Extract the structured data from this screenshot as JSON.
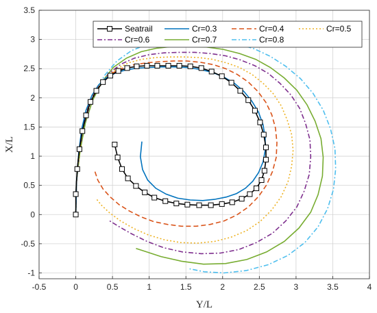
{
  "chart_data": {
    "type": "line",
    "xlabel": "Y/L",
    "ylabel": "X/L",
    "xlim": [
      -0.5,
      4
    ],
    "ylim": [
      -1.1,
      3.5
    ],
    "xticks": [
      -0.5,
      0,
      0.5,
      1,
      1.5,
      2,
      2.5,
      3,
      3.5,
      4
    ],
    "yticks": [
      -1,
      -0.5,
      0,
      0.5,
      1,
      1.5,
      2,
      2.5,
      3,
      3.5
    ],
    "xtick_labels": [
      "-0.5",
      "0",
      "0.5",
      "1",
      "1.5",
      "2",
      "2.5",
      "3",
      "3.5",
      "4"
    ],
    "ytick_labels": [
      "-1",
      "-0.5",
      "0",
      "0.5",
      "1",
      "1.5",
      "2",
      "2.5",
      "3",
      "3.5"
    ],
    "grid": true,
    "legend_position": "top",
    "series": [
      {
        "name": "Seatrail",
        "color": "#000000",
        "style": "solid",
        "marker": "square",
        "x": [
          0.0,
          0.0,
          0.02,
          0.05,
          0.09,
          0.14,
          0.2,
          0.28,
          0.37,
          0.47,
          0.58,
          0.7,
          0.83,
          0.97,
          1.11,
          1.26,
          1.41,
          1.56,
          1.71,
          1.85,
          1.99,
          2.12,
          2.24,
          2.35,
          2.44,
          2.51,
          2.56,
          2.59,
          2.59,
          2.57,
          2.53,
          2.46,
          2.37,
          2.26,
          2.13,
          1.99,
          1.84,
          1.68,
          1.52,
          1.37,
          1.22,
          1.07,
          0.94,
          0.82,
          0.71,
          0.63,
          0.57,
          0.53
        ],
        "y": [
          0.0,
          0.35,
          0.78,
          1.12,
          1.43,
          1.7,
          1.93,
          2.12,
          2.27,
          2.38,
          2.46,
          2.51,
          2.54,
          2.55,
          2.55,
          2.55,
          2.55,
          2.54,
          2.51,
          2.45,
          2.37,
          2.26,
          2.12,
          1.96,
          1.78,
          1.58,
          1.37,
          1.15,
          0.94,
          0.75,
          0.59,
          0.45,
          0.35,
          0.27,
          0.21,
          0.18,
          0.16,
          0.16,
          0.17,
          0.19,
          0.23,
          0.29,
          0.38,
          0.49,
          0.62,
          0.78,
          0.98,
          1.2
        ]
      },
      {
        "name": "Cr=0.3",
        "color": "#0072BD",
        "style": "solid",
        "x": [
          0.0,
          0.01,
          0.04,
          0.08,
          0.14,
          0.22,
          0.31,
          0.42,
          0.55,
          0.69,
          0.84,
          1.0,
          1.17,
          1.34,
          1.51,
          1.68,
          1.85,
          2.01,
          2.16,
          2.29,
          2.4,
          2.49,
          2.55,
          2.58,
          2.58,
          2.55,
          2.49,
          2.41,
          2.31,
          2.19,
          2.05,
          1.89,
          1.73,
          1.56,
          1.39,
          1.23,
          1.09,
          0.98,
          0.91,
          0.88,
          0.9
        ],
        "y": [
          0.0,
          0.55,
          1.05,
          1.46,
          1.79,
          2.04,
          2.22,
          2.35,
          2.43,
          2.48,
          2.51,
          2.52,
          2.53,
          2.53,
          2.52,
          2.49,
          2.44,
          2.36,
          2.25,
          2.11,
          1.94,
          1.75,
          1.54,
          1.32,
          1.1,
          0.9,
          0.72,
          0.57,
          0.45,
          0.36,
          0.3,
          0.26,
          0.24,
          0.25,
          0.28,
          0.35,
          0.45,
          0.59,
          0.77,
          0.99,
          1.25
        ]
      },
      {
        "name": "Cr=0.4",
        "color": "#D95319",
        "style": "dashed",
        "x": [
          0.0,
          0.01,
          0.04,
          0.09,
          0.16,
          0.25,
          0.36,
          0.49,
          0.64,
          0.8,
          0.97,
          1.15,
          1.33,
          1.51,
          1.69,
          1.87,
          2.04,
          2.2,
          2.35,
          2.48,
          2.59,
          2.67,
          2.72,
          2.74,
          2.73,
          2.68,
          2.6,
          2.49,
          2.35,
          2.19,
          2.02,
          1.83,
          1.64,
          1.44,
          1.25,
          1.06,
          0.89,
          0.73,
          0.59,
          0.47,
          0.37,
          0.3,
          0.26
        ],
        "y": [
          0.0,
          0.55,
          1.05,
          1.47,
          1.81,
          2.08,
          2.28,
          2.42,
          2.51,
          2.57,
          2.6,
          2.62,
          2.63,
          2.63,
          2.61,
          2.57,
          2.5,
          2.4,
          2.27,
          2.11,
          1.92,
          1.71,
          1.48,
          1.23,
          0.98,
          0.74,
          0.51,
          0.31,
          0.13,
          -0.01,
          -0.11,
          -0.17,
          -0.2,
          -0.2,
          -0.17,
          -0.12,
          -0.04,
          0.06,
          0.17,
          0.3,
          0.44,
          0.59,
          0.74
        ]
      },
      {
        "name": "Cr=0.5",
        "color": "#EDB120",
        "style": "dotted",
        "x": [
          0.0,
          0.01,
          0.05,
          0.1,
          0.18,
          0.28,
          0.41,
          0.56,
          0.72,
          0.9,
          1.09,
          1.28,
          1.48,
          1.67,
          1.86,
          2.05,
          2.23,
          2.4,
          2.55,
          2.69,
          2.8,
          2.88,
          2.94,
          2.96,
          2.94,
          2.89,
          2.8,
          2.67,
          2.51,
          2.32,
          2.11,
          1.89,
          1.66,
          1.43,
          1.2,
          0.99,
          0.79,
          0.61,
          0.46,
          0.35,
          0.28
        ],
        "y": [
          0.0,
          0.55,
          1.06,
          1.5,
          1.86,
          2.14,
          2.35,
          2.5,
          2.6,
          2.66,
          2.69,
          2.7,
          2.7,
          2.69,
          2.66,
          2.6,
          2.52,
          2.4,
          2.25,
          2.07,
          1.86,
          1.62,
          1.37,
          1.1,
          0.83,
          0.56,
          0.31,
          0.08,
          -0.12,
          -0.28,
          -0.39,
          -0.46,
          -0.49,
          -0.48,
          -0.43,
          -0.35,
          -0.24,
          -0.11,
          0.03,
          0.16,
          0.27
        ]
      },
      {
        "name": "Cr=0.6",
        "color": "#7E2F8E",
        "style": "dashdot",
        "x": [
          0.0,
          0.01,
          0.05,
          0.11,
          0.2,
          0.32,
          0.46,
          0.62,
          0.8,
          1.0,
          1.2,
          1.41,
          1.62,
          1.83,
          2.04,
          2.24,
          2.44,
          2.62,
          2.78,
          2.93,
          3.05,
          3.13,
          3.19,
          3.2,
          3.18,
          3.11,
          3.01,
          2.86,
          2.68,
          2.46,
          2.22,
          1.97,
          1.71,
          1.45,
          1.2,
          0.97,
          0.76,
          0.58,
          0.45
        ],
        "y": [
          0.0,
          0.56,
          1.08,
          1.53,
          1.91,
          2.21,
          2.43,
          2.58,
          2.68,
          2.74,
          2.77,
          2.78,
          2.78,
          2.76,
          2.72,
          2.65,
          2.55,
          2.42,
          2.25,
          2.05,
          1.82,
          1.56,
          1.28,
          0.99,
          0.69,
          0.4,
          0.13,
          -0.11,
          -0.32,
          -0.48,
          -0.6,
          -0.66,
          -0.67,
          -0.64,
          -0.57,
          -0.46,
          -0.33,
          -0.2,
          -0.1
        ]
      },
      {
        "name": "Cr=0.7",
        "color": "#77AC30",
        "style": "solid",
        "x": [
          0.0,
          0.01,
          0.06,
          0.13,
          0.23,
          0.36,
          0.51,
          0.69,
          0.89,
          1.1,
          1.32,
          1.55,
          1.78,
          2.01,
          2.23,
          2.45,
          2.65,
          2.84,
          3.01,
          3.15,
          3.26,
          3.34,
          3.37,
          3.36,
          3.3,
          3.2,
          3.04,
          2.84,
          2.6,
          2.33,
          2.04,
          1.74,
          1.44,
          1.16,
          0.94,
          0.82
        ],
        "y": [
          0.0,
          0.57,
          1.1,
          1.57,
          1.96,
          2.28,
          2.52,
          2.68,
          2.79,
          2.85,
          2.88,
          2.88,
          2.87,
          2.83,
          2.76,
          2.66,
          2.52,
          2.34,
          2.13,
          1.88,
          1.6,
          1.3,
          0.98,
          0.66,
          0.34,
          0.04,
          -0.23,
          -0.46,
          -0.64,
          -0.77,
          -0.84,
          -0.85,
          -0.8,
          -0.72,
          -0.63,
          -0.58
        ]
      },
      {
        "name": "Cr=0.8",
        "color": "#4DBEEE",
        "style": "dashdot",
        "x": [
          0.0,
          0.01,
          0.06,
          0.14,
          0.25,
          0.39,
          0.56,
          0.76,
          0.98,
          1.21,
          1.45,
          1.7,
          1.95,
          2.19,
          2.43,
          2.65,
          2.86,
          3.06,
          3.23,
          3.37,
          3.47,
          3.53,
          3.54,
          3.51,
          3.43,
          3.3,
          3.12,
          2.89,
          2.62,
          2.32,
          2.02,
          1.75,
          1.55
        ],
        "y": [
          0.0,
          0.58,
          1.13,
          1.62,
          2.04,
          2.38,
          2.63,
          2.81,
          2.92,
          2.98,
          3.0,
          3.0,
          2.98,
          2.93,
          2.84,
          2.71,
          2.54,
          2.33,
          2.08,
          1.79,
          1.47,
          1.13,
          0.78,
          0.43,
          0.1,
          -0.21,
          -0.48,
          -0.7,
          -0.86,
          -0.96,
          -1.0,
          -0.98,
          -0.93
        ]
      }
    ]
  }
}
